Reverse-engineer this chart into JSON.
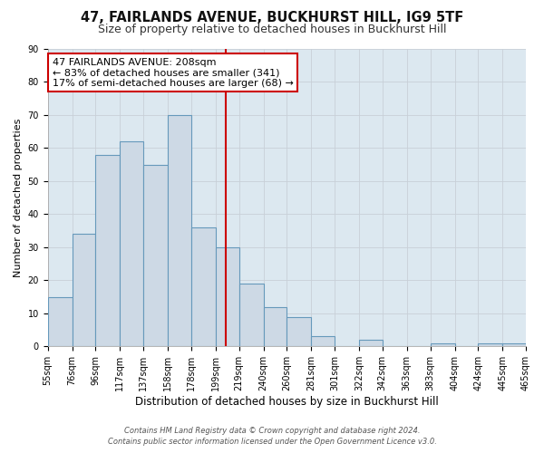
{
  "title": "47, FAIRLANDS AVENUE, BUCKHURST HILL, IG9 5TF",
  "subtitle": "Size of property relative to detached houses in Buckhurst Hill",
  "xlabel": "Distribution of detached houses by size in Buckhurst Hill",
  "ylabel": "Number of detached properties",
  "bar_edges": [
    55,
    76,
    96,
    117,
    137,
    158,
    178,
    199,
    219,
    240,
    260,
    281,
    301,
    322,
    342,
    363,
    383,
    404,
    424,
    445,
    465
  ],
  "bar_heights": [
    15,
    34,
    58,
    62,
    55,
    70,
    36,
    30,
    19,
    12,
    9,
    3,
    0,
    2,
    0,
    0,
    1,
    0,
    1,
    1
  ],
  "bar_color": "#cdd9e5",
  "bar_edge_color": "#6699bb",
  "property_line_x": 208,
  "property_line_color": "#cc0000",
  "annotation_line1": "47 FAIRLANDS AVENUE: 208sqm",
  "annotation_line2": "← 83% of detached houses are smaller (341)",
  "annotation_line3": "17% of semi-detached houses are larger (68) →",
  "annotation_box_color": "#ffffff",
  "annotation_box_edge_color": "#cc0000",
  "ylim": [
    0,
    90
  ],
  "yticks": [
    0,
    10,
    20,
    30,
    40,
    50,
    60,
    70,
    80,
    90
  ],
  "tick_labels": [
    "55sqm",
    "76sqm",
    "96sqm",
    "117sqm",
    "137sqm",
    "158sqm",
    "178sqm",
    "199sqm",
    "219sqm",
    "240sqm",
    "260sqm",
    "281sqm",
    "301sqm",
    "322sqm",
    "342sqm",
    "363sqm",
    "383sqm",
    "404sqm",
    "424sqm",
    "445sqm",
    "465sqm"
  ],
  "grid_color": "#c8d0d8",
  "background_color": "#ffffff",
  "plot_bg_color": "#dce8f0",
  "footer_line1": "Contains HM Land Registry data © Crown copyright and database right 2024.",
  "footer_line2": "Contains public sector information licensed under the Open Government Licence v3.0.",
  "title_fontsize": 10.5,
  "subtitle_fontsize": 9,
  "xlabel_fontsize": 8.5,
  "ylabel_fontsize": 8,
  "tick_fontsize": 7,
  "annotation_fontsize": 8,
  "footer_fontsize": 6
}
